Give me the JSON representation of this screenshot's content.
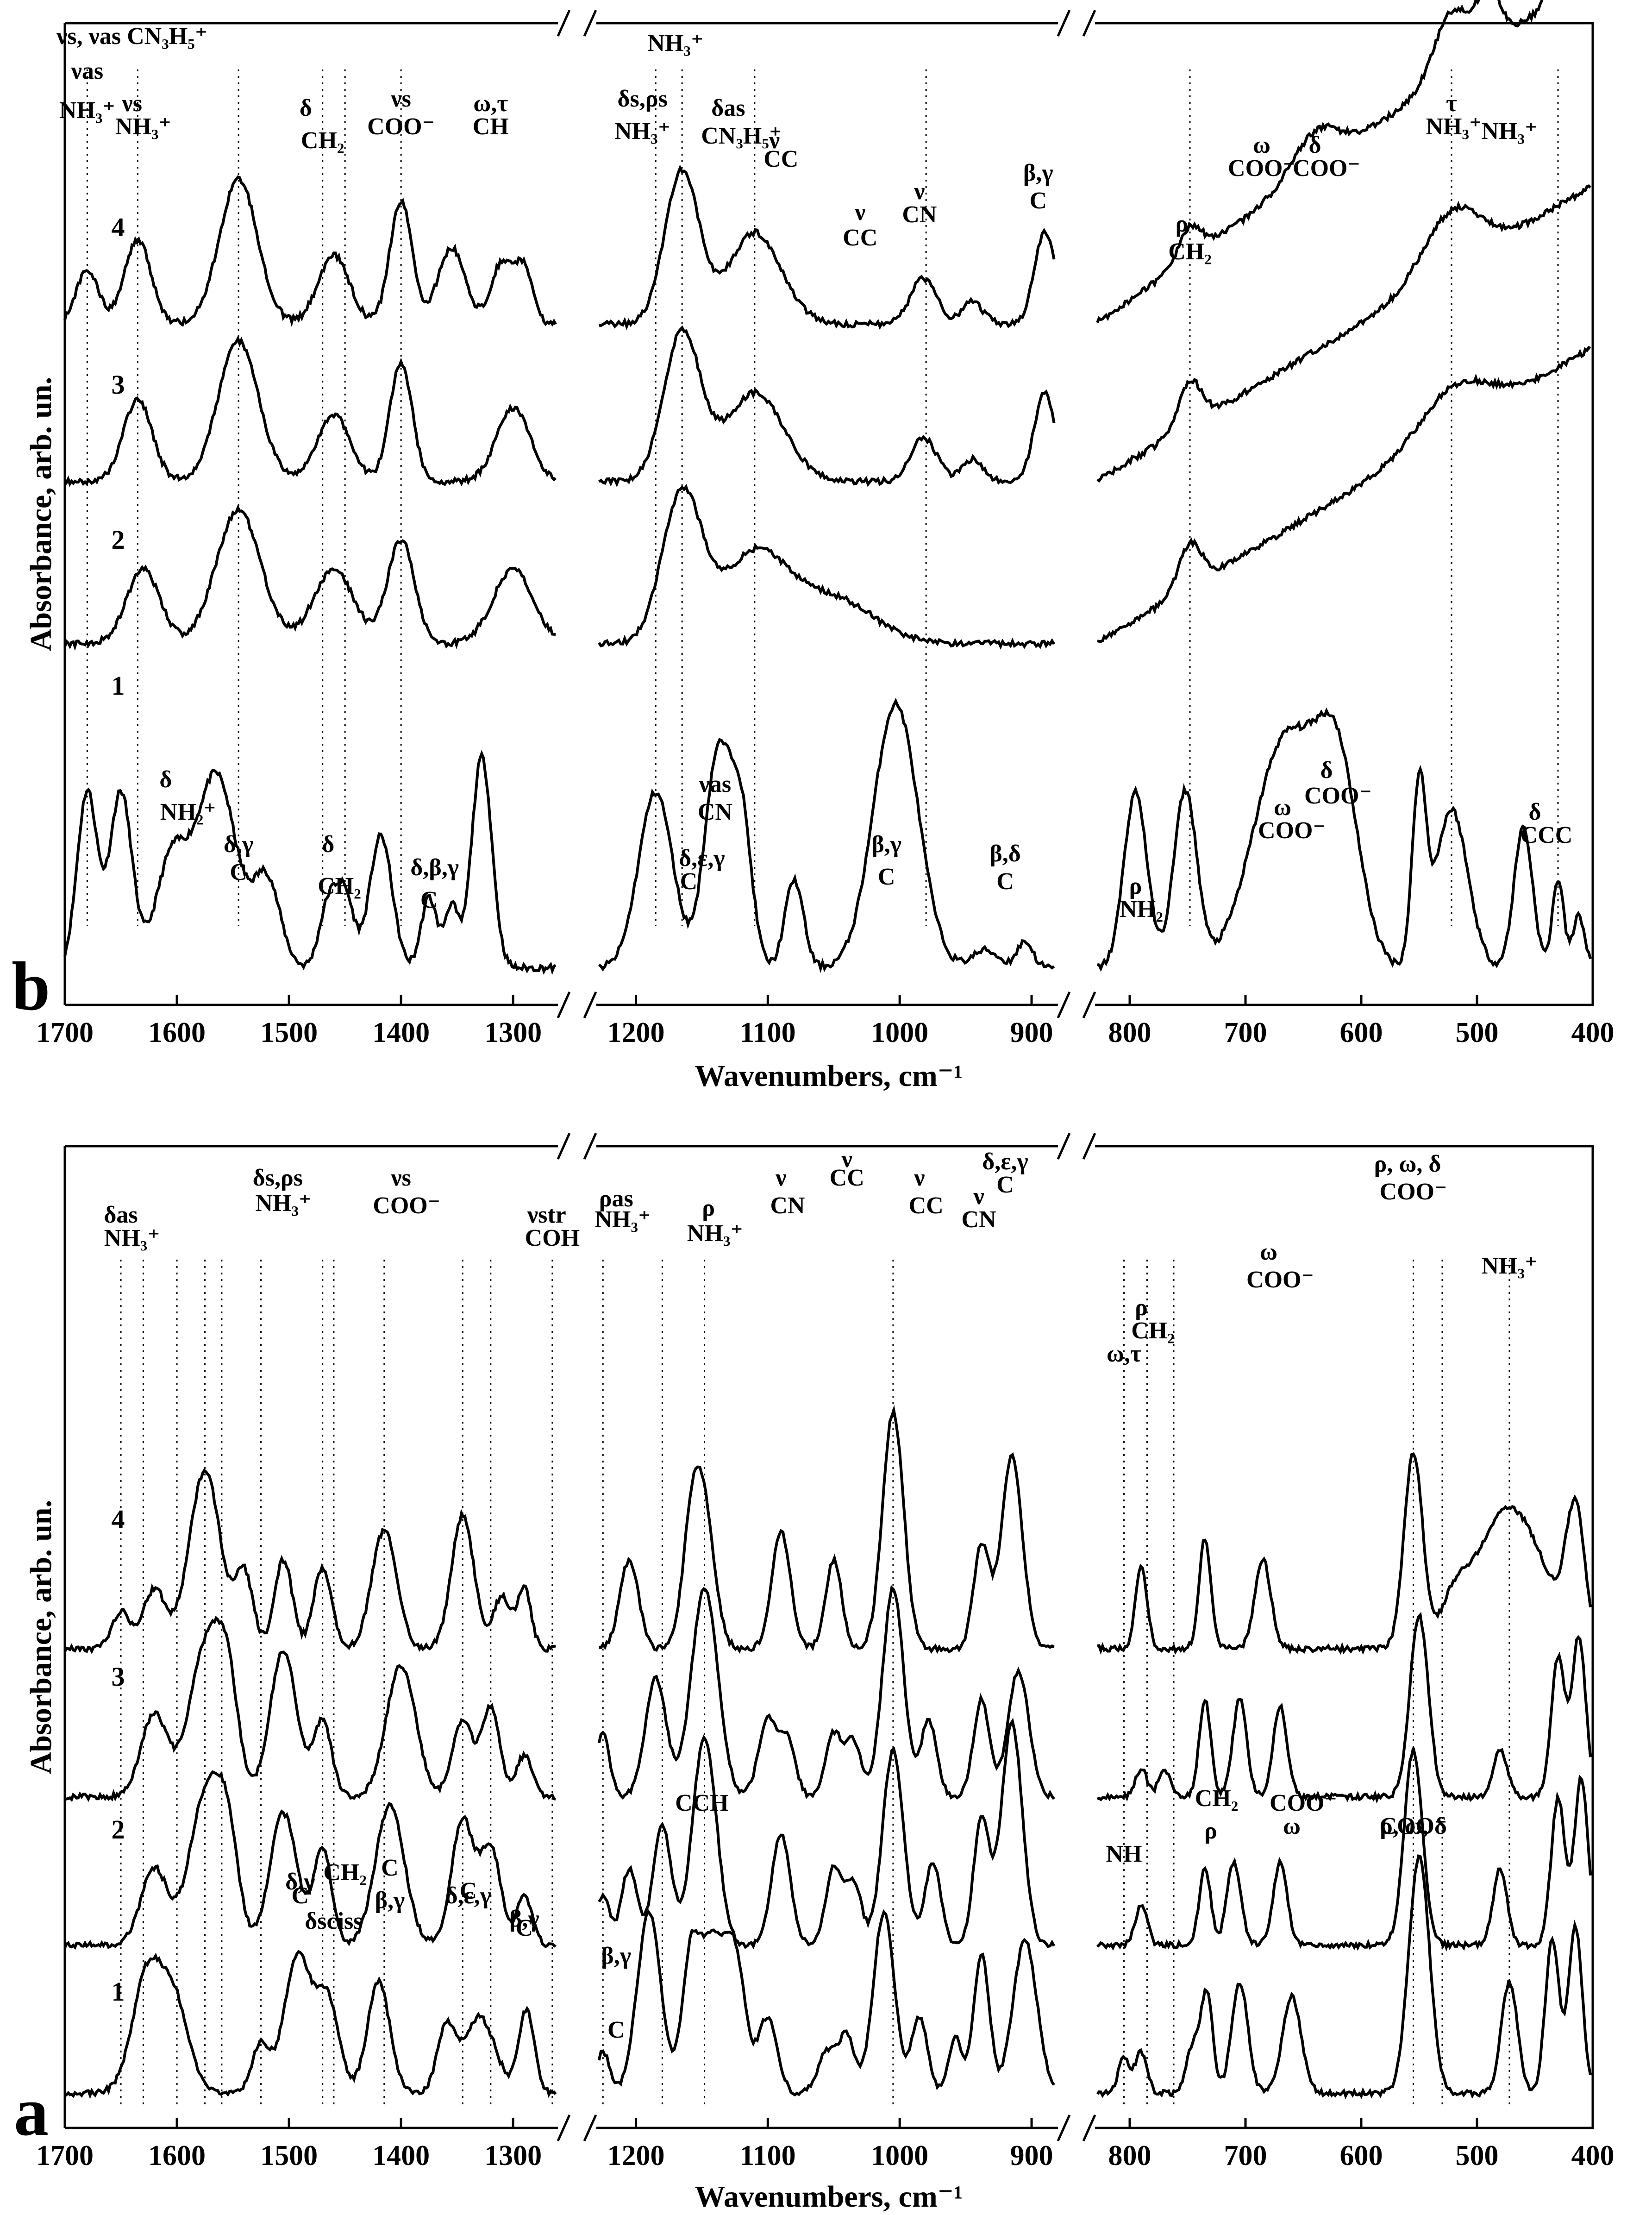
{
  "chart_data": [
    {
      "type": "line",
      "panel": "b",
      "xlabel": "Wavenumbers, cm⁻¹",
      "ylabel": "Absorbance, arb. un.",
      "xlim": [
        1700,
        400
      ],
      "x_breaks": [
        [
          1260,
          1230
        ],
        [
          880,
          830
        ]
      ],
      "x_ticks": [
        "1700",
        "1600",
        "1500",
        "1400",
        "1300",
        "1200",
        "1100",
        "1000",
        "900",
        "800",
        "700",
        "600",
        "500",
        "400"
      ],
      "series": [
        {
          "name": "1"
        },
        {
          "name": "2"
        },
        {
          "name": "3"
        },
        {
          "name": "4"
        }
      ],
      "reference_lines": [
        1680,
        1635,
        1545,
        1470,
        1450,
        1400,
        1185,
        1165,
        1110,
        980,
        748,
        522,
        430
      ],
      "annotations": [
        {
          "text": "νs, νas CN₃H₅⁺",
          "x": 1640
        },
        {
          "text": "νas",
          "x": 1680
        },
        {
          "text": "NH₃⁺",
          "x": 1680
        },
        {
          "text": "νs",
          "x": 1640
        },
        {
          "text": "NH₃⁺",
          "x": 1630
        },
        {
          "text": "δ",
          "x": 1485
        },
        {
          "text": "CH₂",
          "x": 1470
        },
        {
          "text": "νs",
          "x": 1400
        },
        {
          "text": "COO⁻",
          "x": 1400
        },
        {
          "text": "ω,τ",
          "x": 1320
        },
        {
          "text": "CH",
          "x": 1320
        },
        {
          "text": "NH₃⁺",
          "x": 1170
        },
        {
          "text": "δs,ρs",
          "x": 1195
        },
        {
          "text": "NH₃⁺",
          "x": 1195
        },
        {
          "text": "δas",
          "x": 1130
        },
        {
          "text": "CN₃H₅⁺",
          "x": 1120
        },
        {
          "text": "ν",
          "x": 1095
        },
        {
          "text": "CC",
          "x": 1090
        },
        {
          "text": "ν",
          "x": 985
        },
        {
          "text": "CN",
          "x": 985
        },
        {
          "text": "ν",
          "x": 1030
        },
        {
          "text": "CC",
          "x": 1030
        },
        {
          "text": "β,γ",
          "x": 895
        },
        {
          "text": "C",
          "x": 895
        },
        {
          "text": "ρ",
          "x": 755
        },
        {
          "text": "CH₂",
          "x": 748
        },
        {
          "text": "ω",
          "x": 686
        },
        {
          "text": "COO⁻",
          "x": 686
        },
        {
          "text": "δ",
          "x": 640
        },
        {
          "text": "COO⁻",
          "x": 630
        },
        {
          "text": "τ",
          "x": 522
        },
        {
          "text": "NH₃⁺",
          "x": 520
        },
        {
          "text": "δ",
          "x": 1610
        },
        {
          "text": "NH₂⁺",
          "x": 1590
        },
        {
          "text": "δ,γ",
          "x": 1545
        },
        {
          "text": "C",
          "x": 1545
        },
        {
          "text": "δ",
          "x": 1465
        },
        {
          "text": "CH₂",
          "x": 1455
        },
        {
          "text": "δ,β,γ",
          "x": 1370
        },
        {
          "text": "C",
          "x": 1375
        },
        {
          "text": "νas",
          "x": 1140
        },
        {
          "text": "CN",
          "x": 1140
        },
        {
          "text": "δ,ε,γ",
          "x": 1150
        },
        {
          "text": "C",
          "x": 1160
        },
        {
          "text": "β,γ",
          "x": 1010
        },
        {
          "text": "C",
          "x": 1010
        },
        {
          "text": "β,δ",
          "x": 920
        },
        {
          "text": "C",
          "x": 920
        },
        {
          "text": "ω",
          "x": 668
        },
        {
          "text": "COO⁻",
          "x": 660
        },
        {
          "text": "δ",
          "x": 630
        },
        {
          "text": "COO⁻",
          "x": 620
        },
        {
          "text": "ρ",
          "x": 795
        },
        {
          "text": "NH₂",
          "x": 790
        },
        {
          "text": "δ",
          "x": 450
        },
        {
          "text": "CCC",
          "x": 440
        }
      ]
    },
    {
      "type": "line",
      "panel": "a",
      "xlabel": "Wavenumbers, cm⁻¹",
      "ylabel": "Absorbance, arb. un.",
      "xlim": [
        1700,
        400
      ],
      "x_breaks": [
        [
          1260,
          1230
        ],
        [
          880,
          830
        ]
      ],
      "x_ticks": [
        "1700",
        "1600",
        "1500",
        "1400",
        "1300",
        "1200",
        "1100",
        "1000",
        "900",
        "800",
        "700",
        "600",
        "500",
        "400"
      ],
      "series": [
        {
          "name": "1"
        },
        {
          "name": "2"
        },
        {
          "name": "3"
        },
        {
          "name": "4"
        }
      ],
      "reference_lines": [
        1650,
        1630,
        1600,
        1575,
        1560,
        1525,
        1470,
        1460,
        1415,
        1345,
        1320,
        1265,
        1225,
        1180,
        1148,
        1005,
        805,
        785,
        762,
        555,
        530,
        472
      ],
      "annotations": [
        {
          "text": "δas",
          "x": 1650
        },
        {
          "text": "NH₃⁺",
          "x": 1640
        },
        {
          "text": "δs,ρs",
          "x": 1510
        },
        {
          "text": "NH₃⁺",
          "x": 1505
        },
        {
          "text": "νs",
          "x": 1400
        },
        {
          "text": "COO⁻",
          "x": 1395
        },
        {
          "text": "νstr",
          "x": 1270
        },
        {
          "text": "COH",
          "x": 1265
        },
        {
          "text": "ρas",
          "x": 1215
        },
        {
          "text": "NH₃⁺",
          "x": 1210
        },
        {
          "text": "ρ",
          "x": 1145
        },
        {
          "text": "NH₃⁺",
          "x": 1140
        },
        {
          "text": "ν",
          "x": 1090
        },
        {
          "text": "CN",
          "x": 1085
        },
        {
          "text": "ν",
          "x": 1040
        },
        {
          "text": "CC",
          "x": 1040
        },
        {
          "text": "ν",
          "x": 985
        },
        {
          "text": "CC",
          "x": 980
        },
        {
          "text": "δ,ε,γ",
          "x": 920
        },
        {
          "text": "C",
          "x": 920
        },
        {
          "text": "ν",
          "x": 940
        },
        {
          "text": "CN",
          "x": 940
        },
        {
          "text": "ρ, ω, δ",
          "x": 560
        },
        {
          "text": "COO⁻",
          "x": 555
        },
        {
          "text": "NH₃⁺",
          "x": 472
        },
        {
          "text": "ω",
          "x": 680
        },
        {
          "text": "COO⁻",
          "x": 670
        },
        {
          "text": "ρ",
          "x": 790
        },
        {
          "text": "CH₂",
          "x": 780
        },
        {
          "text": "ω,τ",
          "x": 805
        },
        {
          "text": "NH",
          "x": 805
        },
        {
          "text": "δ,γ",
          "x": 1490
        },
        {
          "text": "C",
          "x": 1490
        },
        {
          "text": "δsciss",
          "x": 1460
        },
        {
          "text": "CH₂",
          "x": 1450
        },
        {
          "text": "β,γ",
          "x": 1410
        },
        {
          "text": "C",
          "x": 1410
        },
        {
          "text": "δ,ε,γ",
          "x": 1340
        },
        {
          "text": "C",
          "x": 1340
        },
        {
          "text": "β,γ",
          "x": 1290
        },
        {
          "text": "C",
          "x": 1290
        },
        {
          "text": "β,γ",
          "x": 1215
        },
        {
          "text": "C",
          "x": 1215
        },
        {
          "text": "CCH",
          "x": 1150
        },
        {
          "text": "ρ",
          "x": 730
        },
        {
          "text": "CH₂",
          "x": 725
        },
        {
          "text": "ω",
          "x": 660
        },
        {
          "text": "COO⁻",
          "x": 650
        },
        {
          "text": "ρ, ω, δ",
          "x": 555
        },
        {
          "text": "COO⁻",
          "x": 555
        },
        {
          "text": "NH₃⁺",
          "x": 472
        }
      ]
    }
  ]
}
